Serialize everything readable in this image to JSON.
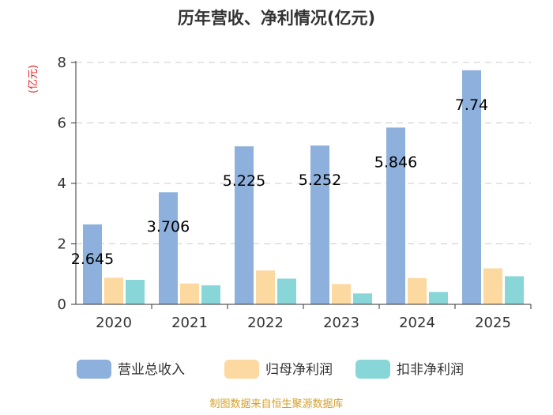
{
  "chart_data": {
    "type": "bar",
    "title": "历年营收、净利情况(亿元)",
    "ylabel": "(亿元)",
    "xlabel": "",
    "categories": [
      "2020",
      "2021",
      "2022",
      "2023",
      "2024",
      "2025"
    ],
    "ylim": [
      0,
      8
    ],
    "yticks": [
      0,
      2,
      4,
      6,
      8
    ],
    "grid": true,
    "legend_position": "bottom",
    "series": [
      {
        "name": "营业总收入",
        "color": "#8eb0dc",
        "values": [
          2.645,
          3.706,
          5.225,
          5.252,
          5.846,
          7.74
        ],
        "labels": [
          "2.645",
          "3.706",
          "5.225",
          "5.252",
          "5.846",
          "7.74"
        ]
      },
      {
        "name": "归母净利润",
        "color": "#fcd9a0",
        "values": [
          0.88,
          0.69,
          1.12,
          0.67,
          0.87,
          1.19
        ]
      },
      {
        "name": "扣非净利润",
        "color": "#88d6d7",
        "values": [
          0.81,
          0.63,
          0.85,
          0.36,
          0.41,
          0.93
        ]
      }
    ]
  },
  "source": "制图数据来自恒生聚源数据库"
}
